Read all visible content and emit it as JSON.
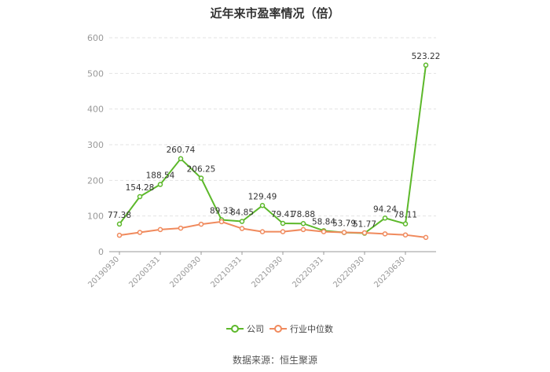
{
  "title": "近年来市盈率情况（倍）",
  "source": "数据来源：恒生聚源",
  "legend": [
    {
      "name": "公司",
      "color": "#5cb82a"
    },
    {
      "name": "行业中位数",
      "color": "#f08a5d"
    }
  ],
  "chart_data": {
    "type": "line",
    "title": "近年来市盈率情况（倍）",
    "xlabel": "",
    "ylabel": "",
    "ylim": [
      0,
      600
    ],
    "yticks": [
      "0",
      "100",
      "200",
      "300",
      "400",
      "500",
      "600"
    ],
    "grid": true,
    "legend_position": "bottom",
    "x_tick_labels": [
      "20190930",
      "20200331",
      "20200930",
      "20210331",
      "20210930",
      "20220331",
      "20220930",
      "20230630"
    ],
    "x_tick_positions": [
      0,
      2,
      4,
      6,
      8,
      10,
      12,
      14
    ],
    "series": [
      {
        "name": "公司",
        "color": "#5cb82a",
        "values": [
          77.38,
          154.28,
          188.54,
          260.74,
          206.25,
          89.33,
          84.85,
          129.49,
          79.41,
          78.88,
          58.84,
          53.79,
          51.77,
          94.24,
          78.11,
          523.22
        ],
        "labels": [
          "77.38",
          "154.28",
          "188.54",
          "260.74",
          "206.25",
          "89.33",
          "84.85",
          "129.49",
          "79.41",
          "78.88",
          "58.84",
          "53.79",
          "51.77",
          "94.24",
          "78.11",
          "523.22"
        ]
      },
      {
        "name": "行业中位数",
        "color": "#f08a5d",
        "values": [
          46,
          54,
          62,
          66,
          77,
          84,
          65,
          56,
          56,
          62,
          56,
          54,
          53,
          50,
          47,
          40
        ]
      }
    ]
  }
}
